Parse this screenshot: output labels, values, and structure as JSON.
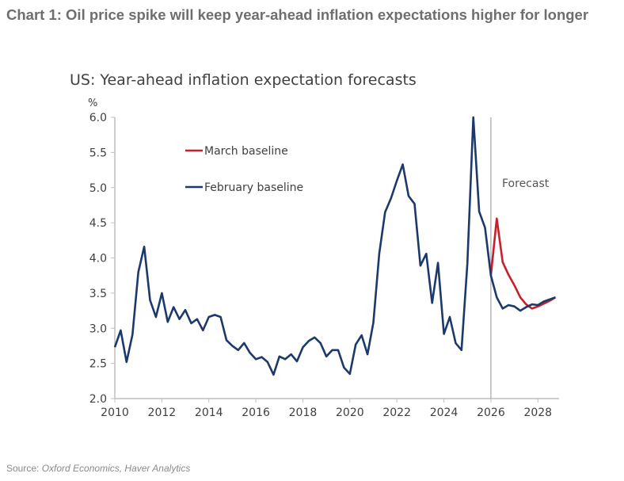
{
  "header": {
    "title": "Chart 1: Oil price spike will keep year-ahead inflation expectations higher for longer"
  },
  "footer": {
    "source_label": "Source:",
    "source_text": "Oxford Economics, Haver Analytics"
  },
  "chart_data": {
    "type": "line",
    "title": "US: Year-ahead inflation expectation forecasts",
    "ylabel": "%",
    "xlabel": "",
    "xlim": [
      2010,
      2028.9
    ],
    "ylim": [
      2.0,
      6.0
    ],
    "x_ticks": [
      2010,
      2012,
      2014,
      2016,
      2018,
      2020,
      2022,
      2024,
      2026,
      2028
    ],
    "x_tick_labels": [
      "2010",
      "2012",
      "2014",
      "2016",
      "2018",
      "2020",
      "2022",
      "2024",
      "2026",
      "2028"
    ],
    "y_ticks": [
      2.0,
      2.5,
      3.0,
      3.5,
      4.0,
      4.5,
      5.0,
      5.5,
      6.0
    ],
    "y_tick_labels": [
      "2.0",
      "2.5",
      "3.0",
      "3.5",
      "4.0",
      "4.5",
      "5.0",
      "5.5",
      "6.0"
    ],
    "grid": false,
    "legend_position": "top-left",
    "x_start": 2010,
    "x_step": 0.25,
    "annotation": {
      "text": "Forecast",
      "x": 2026
    },
    "series": [
      {
        "name": "February baseline",
        "color": "#1b3a6b",
        "start_index": 0,
        "values": [
          2.73,
          2.97,
          2.52,
          2.91,
          3.8,
          4.16,
          3.4,
          3.16,
          3.5,
          3.09,
          3.3,
          3.13,
          3.26,
          3.07,
          3.13,
          2.97,
          3.16,
          3.19,
          3.16,
          2.83,
          2.75,
          2.69,
          2.79,
          2.65,
          2.56,
          2.59,
          2.52,
          2.34,
          2.6,
          2.56,
          2.63,
          2.53,
          2.73,
          2.82,
          2.87,
          2.79,
          2.6,
          2.69,
          2.69,
          2.44,
          2.35,
          2.77,
          2.9,
          2.63,
          3.08,
          4.06,
          4.65,
          4.85,
          5.1,
          5.33,
          4.88,
          4.77,
          3.89,
          4.06,
          3.36,
          3.93,
          2.92,
          3.16,
          2.79,
          2.69,
          3.92,
          6.0,
          4.66,
          4.43,
          3.75,
          3.44,
          3.28,
          3.33,
          3.31,
          3.25,
          3.3,
          3.34,
          3.33,
          3.38,
          3.41,
          3.44
        ]
      },
      {
        "name": "March baseline",
        "color": "#c8202b",
        "start_index": 64,
        "values": [
          3.75,
          4.56,
          3.94,
          3.76,
          3.61,
          3.44,
          3.34,
          3.28,
          3.31,
          3.35,
          3.39,
          3.44
        ]
      }
    ]
  }
}
